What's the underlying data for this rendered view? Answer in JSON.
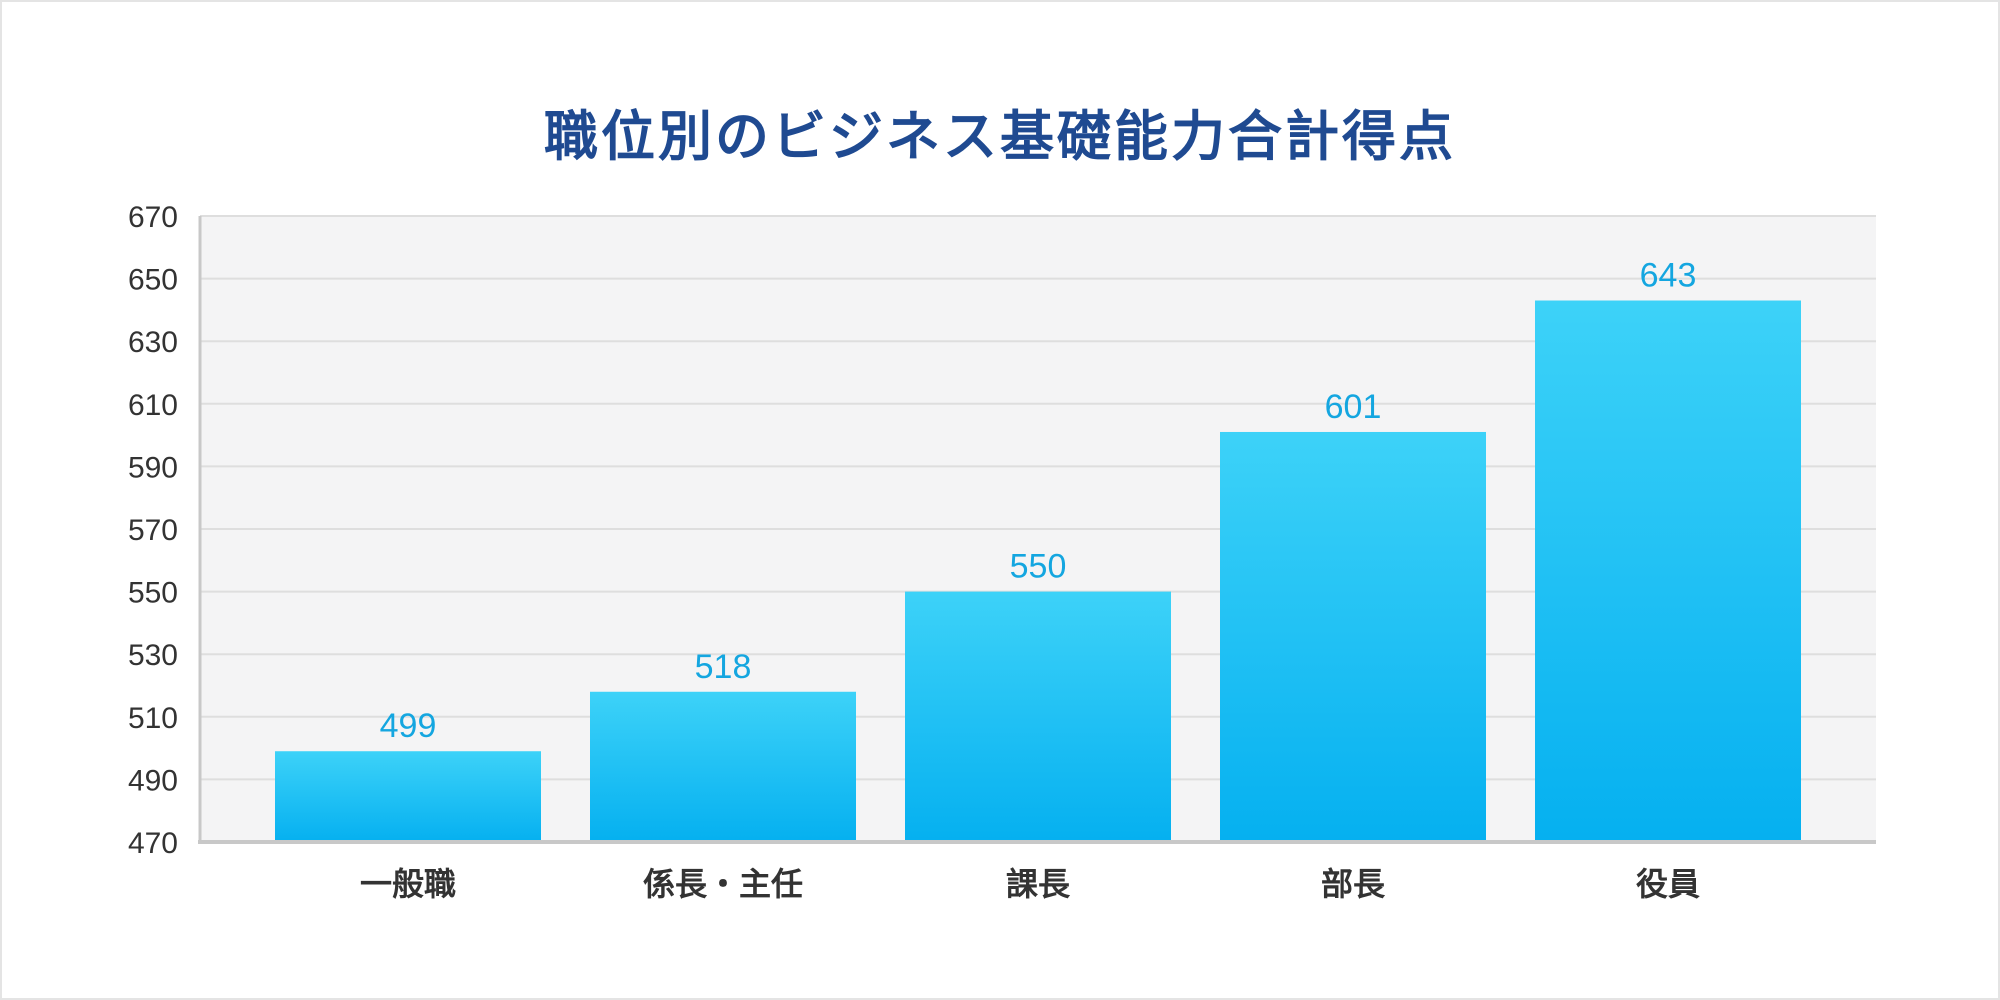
{
  "chart_data": {
    "type": "bar",
    "title": "職位別のビジネス基礎能力合計得点",
    "categories": [
      "一般職",
      "係長・主任",
      "課長",
      "部長",
      "役員"
    ],
    "values": [
      499,
      518,
      550,
      601,
      643
    ],
    "ylim": [
      470,
      670
    ],
    "yticks": [
      470,
      490,
      510,
      530,
      550,
      570,
      590,
      610,
      630,
      650,
      670
    ],
    "grid": true,
    "legend": "none",
    "bar_color_top": "#3dd2f8",
    "bar_color_bottom": "#05b0f0",
    "label_color": "#14a6e0",
    "title_color": "#1f4a91"
  }
}
